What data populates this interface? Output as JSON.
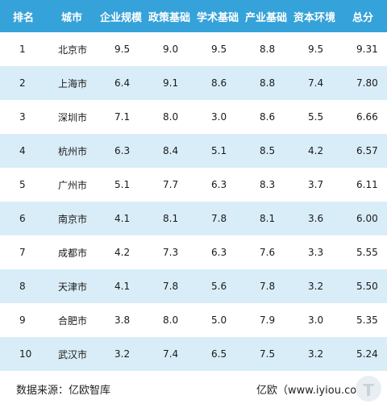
{
  "table": {
    "headers": [
      "排名",
      "城市",
      "企业规模",
      "政策基础",
      "学术基础",
      "产业基础",
      "资本环境",
      "总分"
    ],
    "rows": [
      [
        "1",
        "北京市",
        "9.5",
        "9.0",
        "9.5",
        "8.8",
        "9.5",
        "9.31"
      ],
      [
        "2",
        "上海市",
        "6.4",
        "9.1",
        "8.6",
        "8.8",
        "7.4",
        "7.80"
      ],
      [
        "3",
        "深圳市",
        "7.1",
        "8.0",
        "3.0",
        "8.6",
        "5.5",
        "6.66"
      ],
      [
        "4",
        "杭州市",
        "6.3",
        "8.4",
        "5.1",
        "8.5",
        "4.2",
        "6.57"
      ],
      [
        "5",
        "广州市",
        "5.1",
        "7.7",
        "6.3",
        "8.3",
        "3.7",
        "6.11"
      ],
      [
        "6",
        "南京市",
        "4.1",
        "8.1",
        "7.8",
        "8.1",
        "3.6",
        "6.00"
      ],
      [
        "7",
        "成都市",
        "4.2",
        "7.3",
        "6.3",
        "7.6",
        "3.3",
        "5.55"
      ],
      [
        "8",
        "天津市",
        "4.1",
        "7.8",
        "5.6",
        "7.8",
        "3.2",
        "5.50"
      ],
      [
        "9",
        "合肥市",
        "3.8",
        "8.0",
        "5.0",
        "7.9",
        "3.0",
        "5.35"
      ],
      [
        "10",
        "武汉市",
        "3.2",
        "7.4",
        "6.5",
        "7.5",
        "3.2",
        "5.24"
      ]
    ]
  },
  "footer": {
    "source": "数据来源：亿欧智库",
    "brand": "亿欧（www.iyiou.com）"
  },
  "colors": {
    "header_bg": "#35a2d9",
    "stripe_bg": "#d9edf8"
  },
  "icons": {
    "watermark": "iyiou-logo-watermark"
  }
}
